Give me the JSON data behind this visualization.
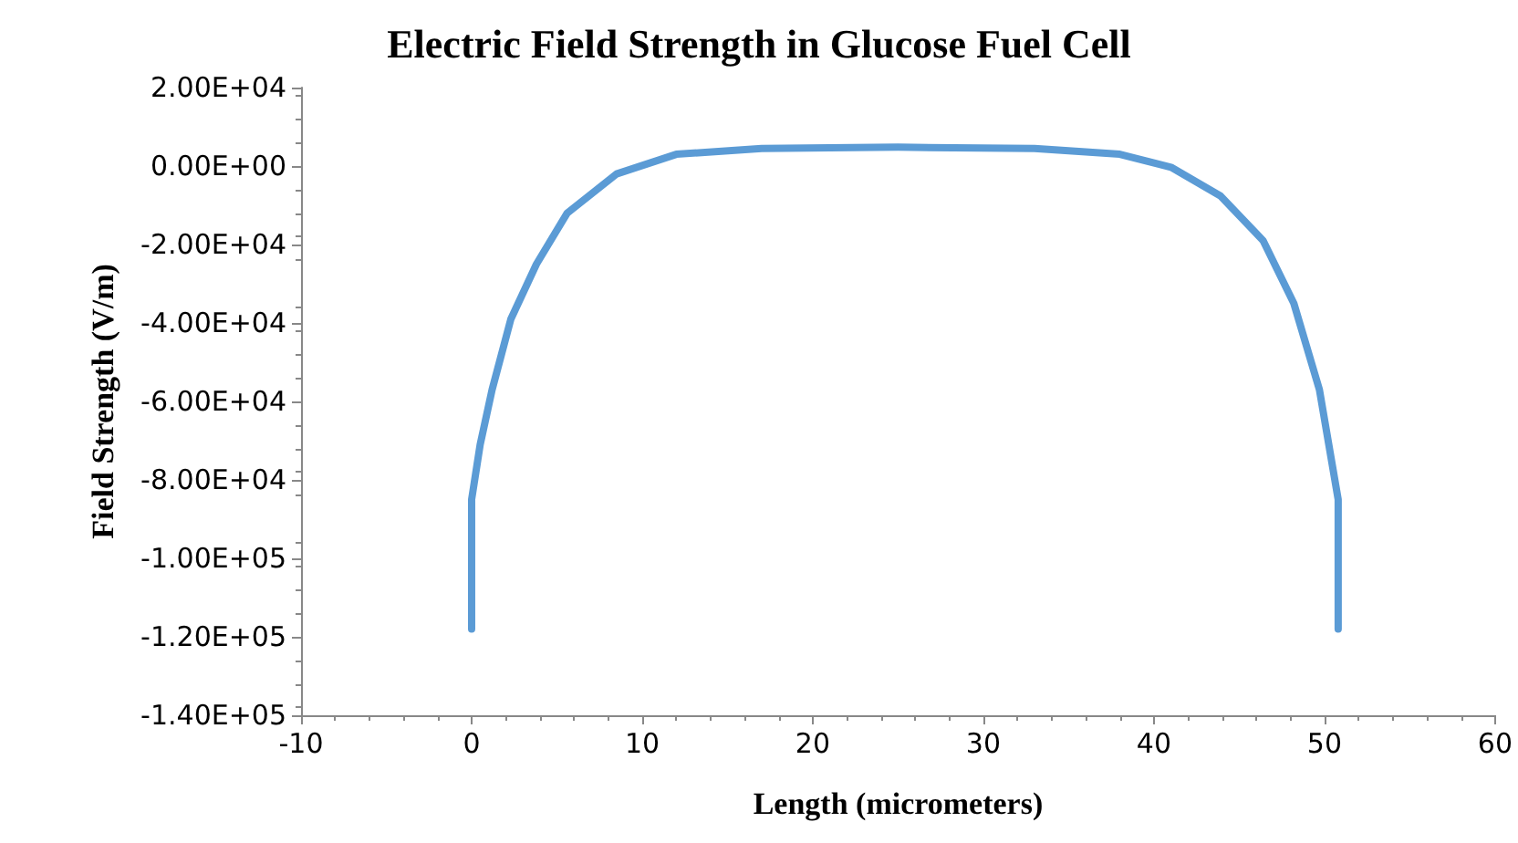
{
  "chart_data": {
    "type": "line",
    "title": "Electric Field Strength in Glucose Fuel Cell",
    "xlabel": "Length (micrometers)",
    "ylabel": "Field Strength (V/m)",
    "series": [
      {
        "color": "#5b9bd5",
        "x": [
          0,
          0,
          0.5,
          1.2,
          2.3,
          3.8,
          5.6,
          8.5,
          12,
          17,
          25,
          33,
          38,
          41,
          43.9,
          46.4,
          48.2,
          49.7,
          50.8,
          50.8
        ],
        "values": [
          -118000,
          -85000,
          -71000,
          -57000,
          -39000,
          -25000,
          -12000,
          -2000,
          3000,
          4500,
          4800,
          4500,
          3000,
          -300,
          -7600,
          -19000,
          -35000,
          -57000,
          -85000,
          -118000
        ]
      }
    ],
    "xlim": [
      -10,
      60
    ],
    "xticks": [
      -10,
      0,
      10,
      20,
      30,
      40,
      50,
      60
    ],
    "ylim": [
      -140000,
      20000
    ],
    "yticks": [
      {
        "value": 20000,
        "label": "2.00E+04"
      },
      {
        "value": 0,
        "label": "0.00E+00"
      },
      {
        "value": -20000,
        "label": "-2.00E+04"
      },
      {
        "value": -40000,
        "label": "-4.00E+04"
      },
      {
        "value": -60000,
        "label": "-6.00E+04"
      },
      {
        "value": -80000,
        "label": "-8.00E+04"
      },
      {
        "value": -100000,
        "label": "-1.00E+05"
      },
      {
        "value": -120000,
        "label": "-1.20E+05"
      },
      {
        "value": -140000,
        "label": "-1.40E+05"
      }
    ],
    "grid": false,
    "marker": "none",
    "line_style": "solid"
  }
}
